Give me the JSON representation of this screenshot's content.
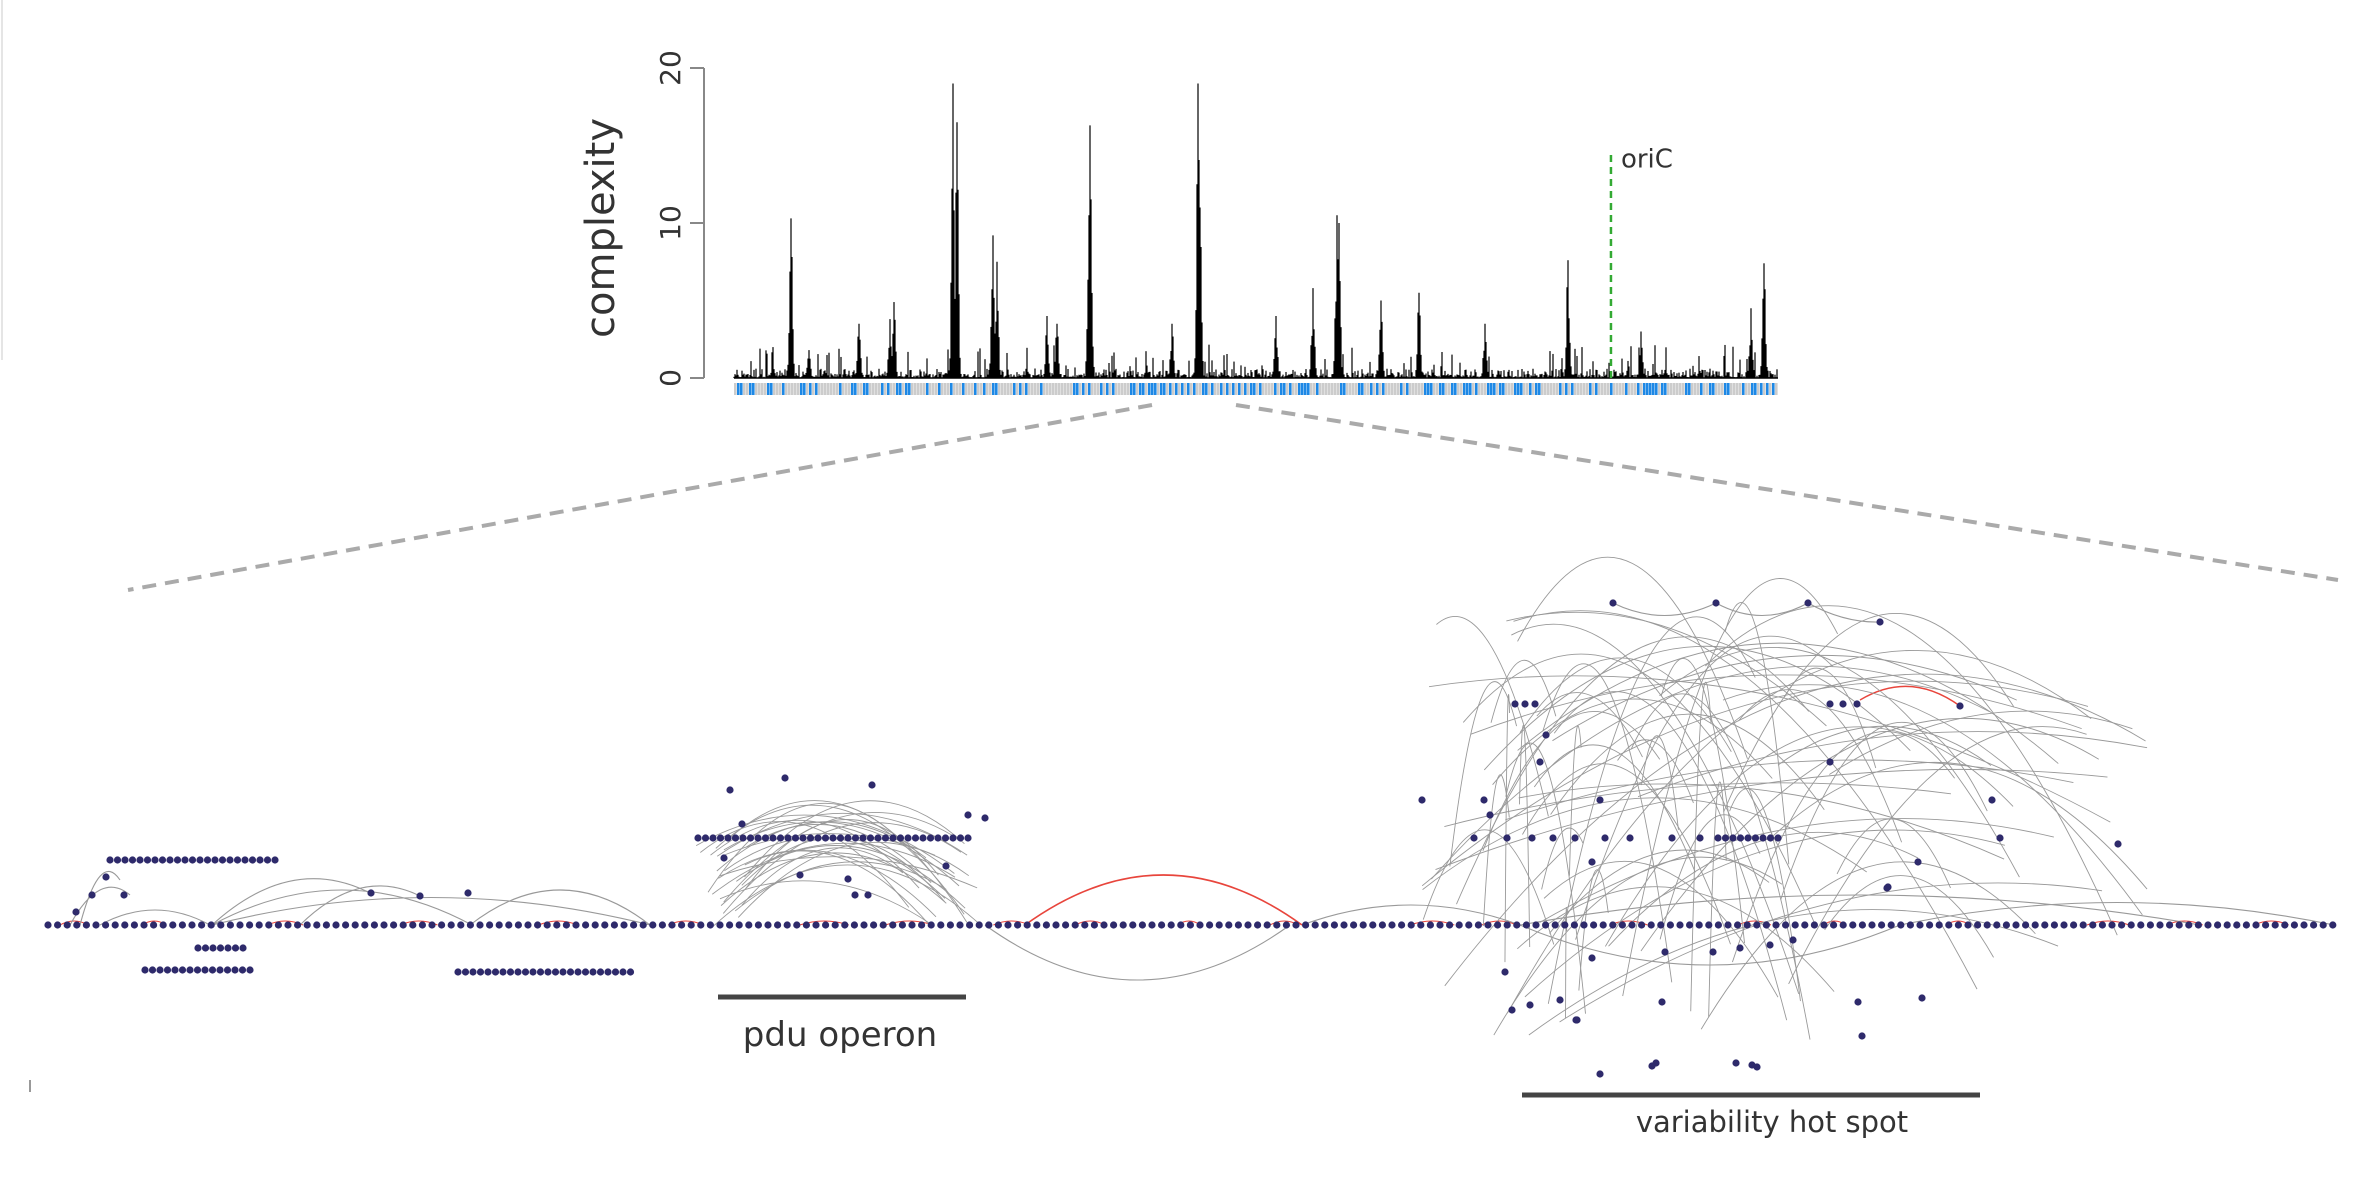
{
  "chart_data": [
    {
      "type": "bar",
      "title": "",
      "xlabel": "",
      "ylabel": "complexity",
      "ylim": [
        0,
        20
      ],
      "yticks": [
        "0",
        "10",
        "20"
      ],
      "marker": {
        "label": "oriC",
        "position_fraction": 0.84,
        "value": 14.5,
        "color": "#33aa33"
      },
      "peaks": [
        {
          "position_fraction": 0.055,
          "value": 10.3
        },
        {
          "position_fraction": 0.072,
          "value": 1.8
        },
        {
          "position_fraction": 0.12,
          "value": 3.5
        },
        {
          "position_fraction": 0.15,
          "value": 3.8
        },
        {
          "position_fraction": 0.153,
          "value": 4.9
        },
        {
          "position_fraction": 0.21,
          "value": 19.0
        },
        {
          "position_fraction": 0.214,
          "value": 16.5
        },
        {
          "position_fraction": 0.248,
          "value": 9.2
        },
        {
          "position_fraction": 0.252,
          "value": 7.5
        },
        {
          "position_fraction": 0.31,
          "value": 3.5
        },
        {
          "position_fraction": 0.34,
          "value": 10.5
        },
        {
          "position_fraction": 0.342,
          "value": 9.0
        },
        {
          "position_fraction": 0.341,
          "value": 16.3
        },
        {
          "position_fraction": 0.3,
          "value": 4.0
        },
        {
          "position_fraction": 0.42,
          "value": 3.5
        },
        {
          "position_fraction": 0.445,
          "value": 19.0
        },
        {
          "position_fraction": 0.447,
          "value": 11.0
        },
        {
          "position_fraction": 0.52,
          "value": 4.0
        },
        {
          "position_fraction": 0.555,
          "value": 5.8
        },
        {
          "position_fraction": 0.578,
          "value": 10.5
        },
        {
          "position_fraction": 0.58,
          "value": 10.0
        },
        {
          "position_fraction": 0.62,
          "value": 5.0
        },
        {
          "position_fraction": 0.657,
          "value": 5.5
        },
        {
          "position_fraction": 0.72,
          "value": 3.5
        },
        {
          "position_fraction": 0.8,
          "value": 7.6
        },
        {
          "position_fraction": 0.87,
          "value": 3.0
        },
        {
          "position_fraction": 0.975,
          "value": 4.5
        },
        {
          "position_fraction": 0.988,
          "value": 7.4
        }
      ]
    },
    {
      "type": "network",
      "annotations": [
        {
          "label": "pdu operon"
        },
        {
          "label": "variability hot spot"
        }
      ],
      "node_color": "#2e2a6b",
      "edge_color": "#999999",
      "highlight_edge_color": "#e8453c"
    }
  ],
  "labels": {
    "ylabel": "complexity",
    "tick_0": "0",
    "tick_10": "10",
    "tick_20": "20",
    "oric": "oriC",
    "pdu": "pdu operon",
    "hotspot": "variability hot spot"
  },
  "colors": {
    "bars": "#000000",
    "gene_track_blue": "#1e88e5",
    "gene_track_grey": "#cccccc",
    "zoom_lines": "#aaaaaa",
    "axis": "#888888"
  }
}
